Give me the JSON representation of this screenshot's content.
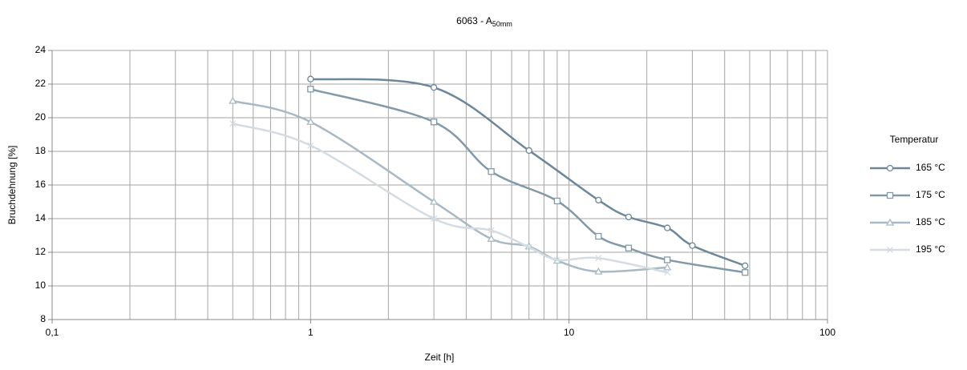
{
  "chart_data": {
    "type": "line",
    "title": "6063 - A",
    "title_subscript": "50mm",
    "x_label": "Zeit [h]",
    "y_label": "Bruchdehnung [%]",
    "x_log": true,
    "xlim": [
      0.1,
      100
    ],
    "xticks": [
      {
        "value": 0.1,
        "label": "0,1"
      },
      1,
      10,
      100
    ],
    "x_minor_ticks": [
      0.2,
      0.3,
      0.4,
      0.5,
      0.6,
      0.7,
      0.8,
      0.9,
      2,
      3,
      4,
      5,
      6,
      7,
      8,
      9,
      20,
      30,
      40,
      50,
      60,
      70,
      80,
      90
    ],
    "ylim": [
      8,
      24
    ],
    "yticks": [
      8,
      10,
      12,
      14,
      16,
      18,
      20,
      22,
      24
    ],
    "grid": true,
    "legend_title": "Temperatur",
    "legend_position": "right",
    "series": [
      {
        "name": "165 °C",
        "color": "#6b8799",
        "marker": "circle",
        "x": [
          1,
          3,
          7,
          13,
          17,
          24,
          30,
          48
        ],
        "values": [
          22.3,
          21.8,
          18.05,
          15.1,
          14.1,
          13.45,
          12.4,
          11.2
        ]
      },
      {
        "name": "175 °C",
        "color": "#8299a8",
        "marker": "square",
        "x": [
          1,
          3,
          5,
          9,
          13,
          17,
          24,
          48
        ],
        "values": [
          21.7,
          19.75,
          16.8,
          15.05,
          12.95,
          12.25,
          11.55,
          10.8
        ]
      },
      {
        "name": "185 °C",
        "color": "#a9b9c3",
        "marker": "triangle",
        "x": [
          0.5,
          1,
          3,
          5,
          7,
          9,
          13,
          24
        ],
        "values": [
          21.0,
          19.75,
          15.0,
          12.8,
          12.35,
          11.5,
          10.85,
          11.1
        ]
      },
      {
        "name": "195 °C",
        "color": "#d3dce2",
        "marker": "x",
        "x": [
          0.5,
          1,
          3,
          5,
          7,
          9,
          13,
          24
        ],
        "values": [
          19.65,
          18.35,
          14.0,
          13.3,
          12.3,
          11.55,
          11.65,
          10.8
        ]
      }
    ]
  }
}
